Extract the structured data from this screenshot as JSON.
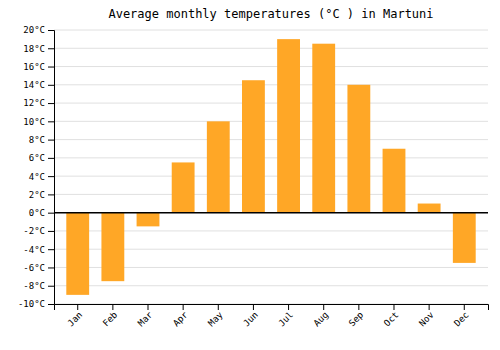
{
  "chart_data": {
    "type": "bar",
    "title": "Average monthly temperatures (°C ) in Martuni",
    "categories": [
      "Jan",
      "Feb",
      "Mar",
      "Apr",
      "May",
      "Jun",
      "Jul",
      "Aug",
      "Sep",
      "Oct",
      "Nov",
      "Dec"
    ],
    "values": [
      -9,
      -7.5,
      -1.5,
      5.5,
      10,
      14.5,
      19,
      18.5,
      14,
      7,
      1,
      -5.5
    ],
    "color": "#FFA726",
    "ylim": [
      -10,
      20
    ],
    "yticks": [
      {
        "value": -10,
        "label": "-10°C"
      },
      {
        "value": -8,
        "label": "-8°C"
      },
      {
        "value": -6,
        "label": "-6°C"
      },
      {
        "value": -4,
        "label": "-4°C"
      },
      {
        "value": -2,
        "label": "-2°C"
      },
      {
        "value": 0,
        "label": "0°C"
      },
      {
        "value": 2,
        "label": "2°C"
      },
      {
        "value": 4,
        "label": "4°C"
      },
      {
        "value": 6,
        "label": "6°C"
      },
      {
        "value": 8,
        "label": "8°C"
      },
      {
        "value": 10,
        "label": "10°C"
      },
      {
        "value": 12,
        "label": "12°C"
      },
      {
        "value": 14,
        "label": "14°C"
      },
      {
        "value": 16,
        "label": "16°C"
      },
      {
        "value": 18,
        "label": "18°C"
      },
      {
        "value": 20,
        "label": "20°C"
      }
    ],
    "grid": true
  }
}
